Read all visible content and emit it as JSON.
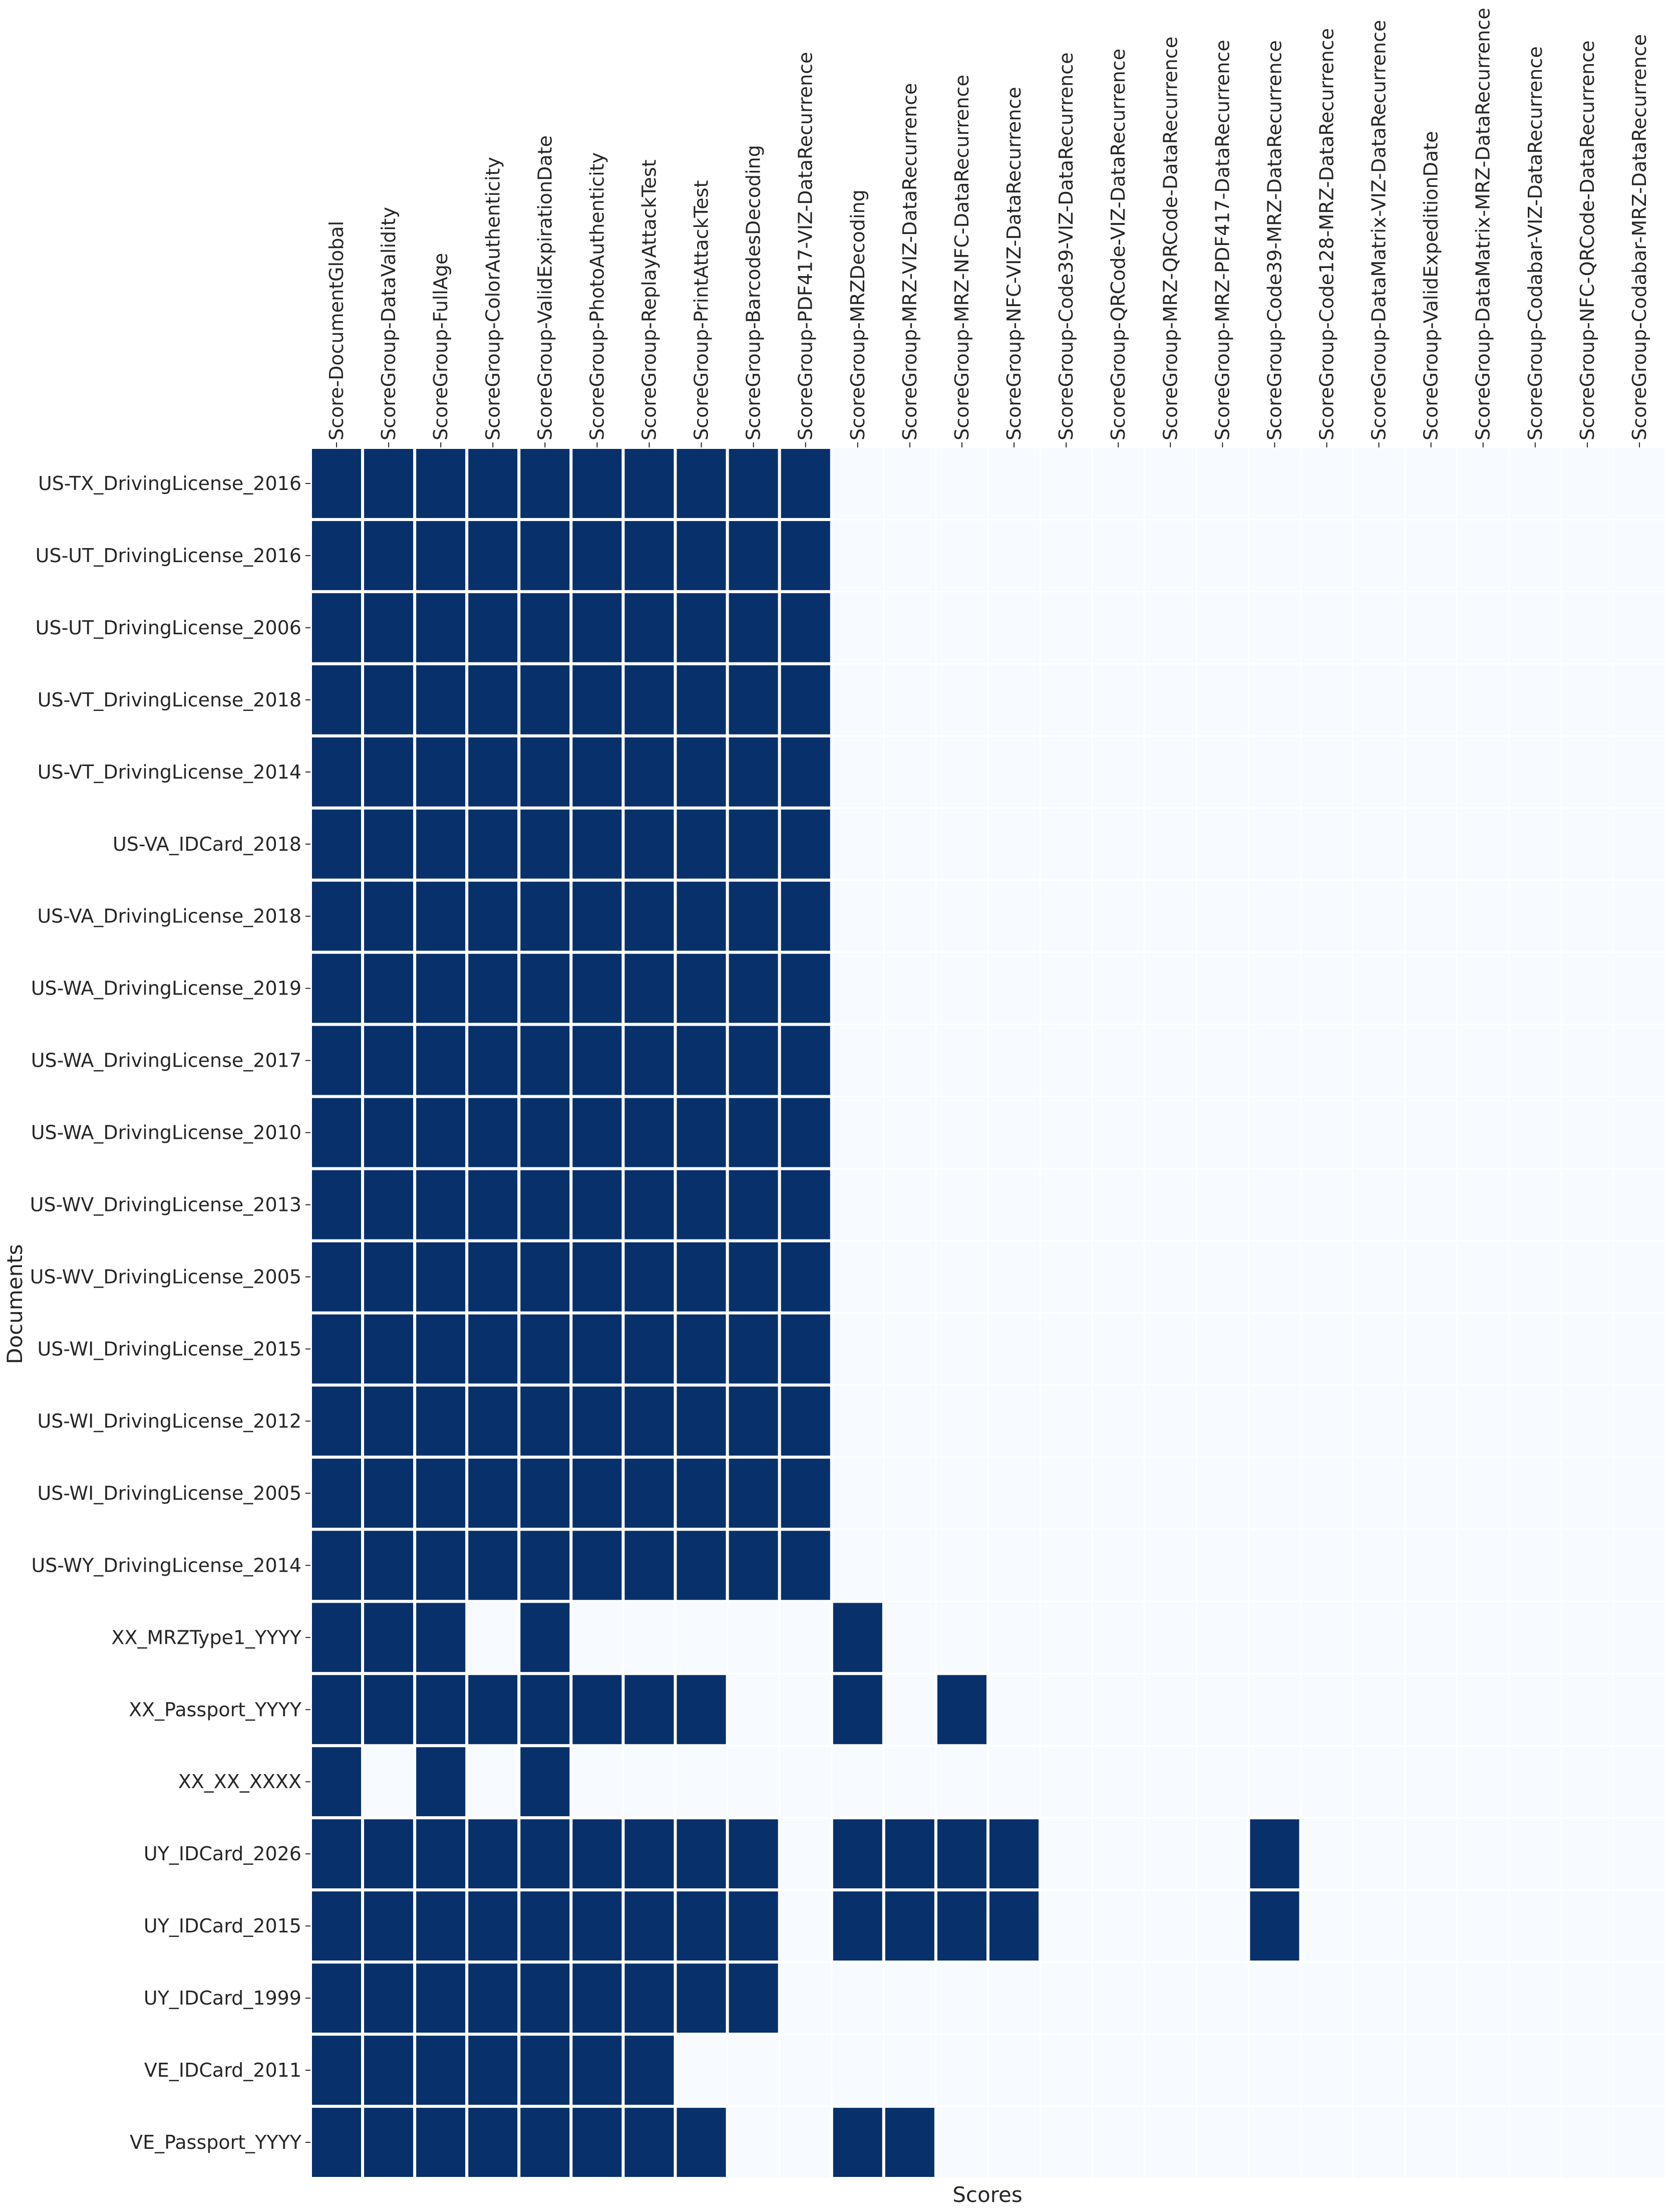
{
  "chart_data": {
    "type": "heatmap",
    "title": "",
    "xlabel": "Scores",
    "ylabel": "Documents",
    "colors": {
      "present": "#08306b",
      "absent": "#f7fbff",
      "gridline": "#ffffff"
    },
    "columns": [
      "Score-DocumentGlobal",
      "ScoreGroup-DataValidity",
      "ScoreGroup-FullAge",
      "ScoreGroup-ColorAuthenticity",
      "ScoreGroup-ValidExpirationDate",
      "ScoreGroup-PhotoAuthenticity",
      "ScoreGroup-ReplayAttackTest",
      "ScoreGroup-PrintAttackTest",
      "ScoreGroup-BarcodesDecoding",
      "ScoreGroup-PDF417-VIZ-DataRecurrence",
      "ScoreGroup-MRZDecoding",
      "ScoreGroup-MRZ-VIZ-DataRecurrence",
      "ScoreGroup-MRZ-NFC-DataRecurrence",
      "ScoreGroup-NFC-VIZ-DataRecurrence",
      "ScoreGroup-Code39-VIZ-DataRecurrence",
      "ScoreGroup-QRCode-VIZ-DataRecurrence",
      "ScoreGroup-MRZ-QRCode-DataRecurrence",
      "ScoreGroup-MRZ-PDF417-DataRecurrence",
      "ScoreGroup-Code39-MRZ-DataRecurrence",
      "ScoreGroup-Code128-MRZ-DataRecurrence",
      "ScoreGroup-DataMatrix-VIZ-DataRecurrence",
      "ScoreGroup-ValidExpeditionDate",
      "ScoreGroup-DataMatrix-MRZ-DataRecurrence",
      "ScoreGroup-Codabar-VIZ-DataRecurrence",
      "ScoreGroup-NFC-QRCode-DataRecurrence",
      "ScoreGroup-Codabar-MRZ-DataRecurrence"
    ],
    "rows": [
      "US-TX_DrivingLicense_2016",
      "US-UT_DrivingLicense_2016",
      "US-UT_DrivingLicense_2006",
      "US-VT_DrivingLicense_2018",
      "US-VT_DrivingLicense_2014",
      "US-VA_IDCard_2018",
      "US-VA_DrivingLicense_2018",
      "US-WA_DrivingLicense_2019",
      "US-WA_DrivingLicense_2017",
      "US-WA_DrivingLicense_2010",
      "US-WV_DrivingLicense_2013",
      "US-WV_DrivingLicense_2005",
      "US-WI_DrivingLicense_2015",
      "US-WI_DrivingLicense_2012",
      "US-WI_DrivingLicense_2005",
      "US-WY_DrivingLicense_2014",
      "XX_MRZType1_YYYY",
      "XX_Passport_YYYY",
      "XX_XX_XXXX",
      "UY_IDCard_2026",
      "UY_IDCard_2015",
      "UY_IDCard_1999",
      "VE_IDCard_2011",
      "VE_Passport_YYYY"
    ],
    "values": [
      [
        1,
        1,
        1,
        1,
        1,
        1,
        1,
        1,
        1,
        1,
        0,
        0,
        0,
        0,
        0,
        0,
        0,
        0,
        0,
        0,
        0,
        0,
        0,
        0,
        0,
        0
      ],
      [
        1,
        1,
        1,
        1,
        1,
        1,
        1,
        1,
        1,
        1,
        0,
        0,
        0,
        0,
        0,
        0,
        0,
        0,
        0,
        0,
        0,
        0,
        0,
        0,
        0,
        0
      ],
      [
        1,
        1,
        1,
        1,
        1,
        1,
        1,
        1,
        1,
        1,
        0,
        0,
        0,
        0,
        0,
        0,
        0,
        0,
        0,
        0,
        0,
        0,
        0,
        0,
        0,
        0
      ],
      [
        1,
        1,
        1,
        1,
        1,
        1,
        1,
        1,
        1,
        1,
        0,
        0,
        0,
        0,
        0,
        0,
        0,
        0,
        0,
        0,
        0,
        0,
        0,
        0,
        0,
        0
      ],
      [
        1,
        1,
        1,
        1,
        1,
        1,
        1,
        1,
        1,
        1,
        0,
        0,
        0,
        0,
        0,
        0,
        0,
        0,
        0,
        0,
        0,
        0,
        0,
        0,
        0,
        0
      ],
      [
        1,
        1,
        1,
        1,
        1,
        1,
        1,
        1,
        1,
        1,
        0,
        0,
        0,
        0,
        0,
        0,
        0,
        0,
        0,
        0,
        0,
        0,
        0,
        0,
        0,
        0
      ],
      [
        1,
        1,
        1,
        1,
        1,
        1,
        1,
        1,
        1,
        1,
        0,
        0,
        0,
        0,
        0,
        0,
        0,
        0,
        0,
        0,
        0,
        0,
        0,
        0,
        0,
        0
      ],
      [
        1,
        1,
        1,
        1,
        1,
        1,
        1,
        1,
        1,
        1,
        0,
        0,
        0,
        0,
        0,
        0,
        0,
        0,
        0,
        0,
        0,
        0,
        0,
        0,
        0,
        0
      ],
      [
        1,
        1,
        1,
        1,
        1,
        1,
        1,
        1,
        1,
        1,
        0,
        0,
        0,
        0,
        0,
        0,
        0,
        0,
        0,
        0,
        0,
        0,
        0,
        0,
        0,
        0
      ],
      [
        1,
        1,
        1,
        1,
        1,
        1,
        1,
        1,
        1,
        1,
        0,
        0,
        0,
        0,
        0,
        0,
        0,
        0,
        0,
        0,
        0,
        0,
        0,
        0,
        0,
        0
      ],
      [
        1,
        1,
        1,
        1,
        1,
        1,
        1,
        1,
        1,
        1,
        0,
        0,
        0,
        0,
        0,
        0,
        0,
        0,
        0,
        0,
        0,
        0,
        0,
        0,
        0,
        0
      ],
      [
        1,
        1,
        1,
        1,
        1,
        1,
        1,
        1,
        1,
        1,
        0,
        0,
        0,
        0,
        0,
        0,
        0,
        0,
        0,
        0,
        0,
        0,
        0,
        0,
        0,
        0
      ],
      [
        1,
        1,
        1,
        1,
        1,
        1,
        1,
        1,
        1,
        1,
        0,
        0,
        0,
        0,
        0,
        0,
        0,
        0,
        0,
        0,
        0,
        0,
        0,
        0,
        0,
        0
      ],
      [
        1,
        1,
        1,
        1,
        1,
        1,
        1,
        1,
        1,
        1,
        0,
        0,
        0,
        0,
        0,
        0,
        0,
        0,
        0,
        0,
        0,
        0,
        0,
        0,
        0,
        0
      ],
      [
        1,
        1,
        1,
        1,
        1,
        1,
        1,
        1,
        1,
        1,
        0,
        0,
        0,
        0,
        0,
        0,
        0,
        0,
        0,
        0,
        0,
        0,
        0,
        0,
        0,
        0
      ],
      [
        1,
        1,
        1,
        1,
        1,
        1,
        1,
        1,
        1,
        1,
        0,
        0,
        0,
        0,
        0,
        0,
        0,
        0,
        0,
        0,
        0,
        0,
        0,
        0,
        0,
        0
      ],
      [
        1,
        1,
        1,
        0,
        1,
        0,
        0,
        0,
        0,
        0,
        1,
        0,
        0,
        0,
        0,
        0,
        0,
        0,
        0,
        0,
        0,
        0,
        0,
        0,
        0,
        0
      ],
      [
        1,
        1,
        1,
        1,
        1,
        1,
        1,
        1,
        0,
        0,
        1,
        0,
        1,
        0,
        0,
        0,
        0,
        0,
        0,
        0,
        0,
        0,
        0,
        0,
        0,
        0
      ],
      [
        1,
        0,
        1,
        0,
        1,
        0,
        0,
        0,
        0,
        0,
        0,
        0,
        0,
        0,
        0,
        0,
        0,
        0,
        0,
        0,
        0,
        0,
        0,
        0,
        0,
        0
      ],
      [
        1,
        1,
        1,
        1,
        1,
        1,
        1,
        1,
        1,
        0,
        1,
        1,
        1,
        1,
        0,
        0,
        0,
        0,
        1,
        0,
        0,
        0,
        0,
        0,
        0,
        0
      ],
      [
        1,
        1,
        1,
        1,
        1,
        1,
        1,
        1,
        1,
        0,
        1,
        1,
        1,
        1,
        0,
        0,
        0,
        0,
        1,
        0,
        0,
        0,
        0,
        0,
        0,
        0
      ],
      [
        1,
        1,
        1,
        1,
        1,
        1,
        1,
        1,
        1,
        0,
        0,
        0,
        0,
        0,
        0,
        0,
        0,
        0,
        0,
        0,
        0,
        0,
        0,
        0,
        0,
        0
      ],
      [
        1,
        1,
        1,
        1,
        1,
        1,
        1,
        0,
        0,
        0,
        0,
        0,
        0,
        0,
        0,
        0,
        0,
        0,
        0,
        0,
        0,
        0,
        0,
        0,
        0,
        0
      ],
      [
        1,
        1,
        1,
        1,
        1,
        1,
        1,
        1,
        0,
        0,
        1,
        1,
        0,
        0,
        0,
        0,
        0,
        0,
        0,
        0,
        0,
        0,
        0,
        0,
        0,
        0
      ]
    ],
    "legend": "none"
  }
}
